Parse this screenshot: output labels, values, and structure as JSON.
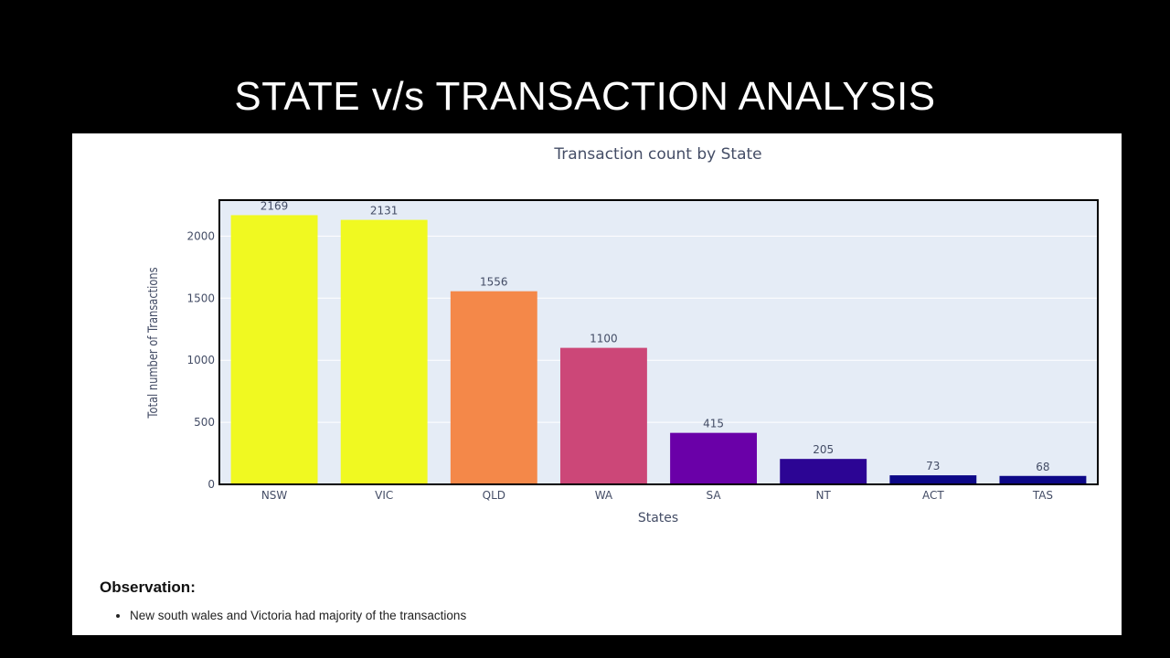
{
  "slide": {
    "title": "STATE v/s TRANSACTION ANALYSIS",
    "background": "#000000"
  },
  "chart_data": {
    "type": "bar",
    "title": "Transaction count by State",
    "xlabel": "States",
    "ylabel": "Total number of Transactions",
    "categories": [
      "NSW",
      "VIC",
      "QLD",
      "WA",
      "SA",
      "NT",
      "ACT",
      "TAS"
    ],
    "values": [
      2169,
      2131,
      1556,
      1100,
      415,
      205,
      73,
      68
    ],
    "data_labels": [
      "2169",
      "2131",
      "1556",
      "1100",
      "415",
      "205",
      "73",
      "68"
    ],
    "bar_colors": [
      "#f0f921",
      "#f0f921",
      "#f48849",
      "#cc4778",
      "#6a00a8",
      "#2c0594",
      "#0d0887",
      "#0d0887"
    ],
    "ylim": [
      0,
      2290
    ],
    "yticks": [
      0,
      500,
      1000,
      1500,
      2000
    ],
    "ytick_labels": [
      "0",
      "500",
      "1000",
      "1500",
      "2000"
    ],
    "grid": true,
    "plot_background": "#e5ecf6"
  },
  "observation": {
    "heading": "Observation:",
    "items": [
      "New south wales and Victoria had majority of the transactions"
    ]
  }
}
